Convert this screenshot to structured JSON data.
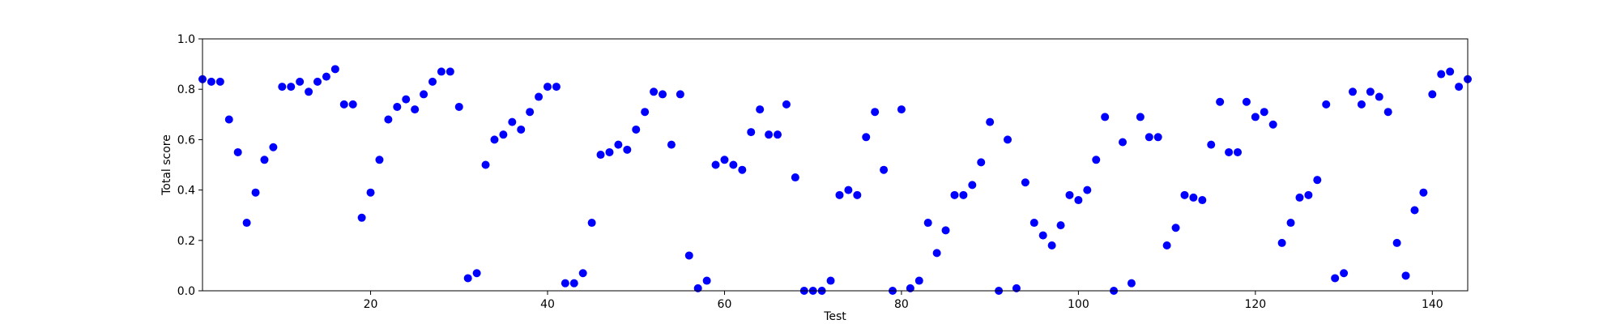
{
  "chart_data": {
    "type": "scatter",
    "title": "",
    "xlabel": "Test",
    "ylabel": "Total score",
    "xlim": [
      1,
      144
    ],
    "ylim": [
      0.0,
      1.0
    ],
    "grid": false,
    "marker_color": "#0000ff",
    "x_ticks": [
      20,
      40,
      60,
      80,
      100,
      120,
      140
    ],
    "y_ticks": [
      0.0,
      0.2,
      0.4,
      0.6,
      0.8,
      1.0
    ],
    "x_tick_labels": [
      "20",
      "40",
      "60",
      "80",
      "100",
      "120",
      "140"
    ],
    "y_tick_labels": [
      "0.0",
      "0.2",
      "0.4",
      "0.6",
      "0.8",
      "1.0"
    ],
    "series": [
      {
        "x": [
          1,
          2,
          3,
          4,
          5,
          6,
          7,
          8,
          9,
          10,
          11,
          12,
          13,
          14,
          15,
          16,
          17,
          18,
          19,
          20,
          21,
          22,
          23,
          24,
          25,
          26,
          27,
          28,
          29,
          30,
          31,
          32,
          33,
          34,
          35,
          36,
          37,
          38,
          39,
          40,
          41,
          42,
          43,
          44,
          45,
          46,
          47,
          48,
          49,
          50,
          51,
          52,
          53,
          54,
          55,
          56,
          57,
          58,
          59,
          60,
          61,
          62,
          63,
          64,
          65,
          66,
          67,
          68,
          69,
          70,
          71,
          72,
          73,
          74,
          75,
          76,
          77,
          78,
          79,
          80,
          81,
          82,
          83,
          84,
          85,
          86,
          87,
          88,
          89,
          90,
          91,
          92,
          93,
          94,
          95,
          96,
          97,
          98,
          99,
          100,
          101,
          102,
          103,
          104,
          105,
          106,
          107,
          108,
          109,
          110,
          111,
          112,
          113,
          114,
          115,
          116,
          117,
          118,
          119,
          120,
          121,
          122,
          123,
          124,
          125,
          126,
          127,
          128,
          129,
          130,
          131,
          132,
          133,
          134,
          135,
          136,
          137,
          138,
          139,
          140,
          141,
          142,
          143,
          144
        ],
        "y": [
          0.84,
          0.83,
          0.83,
          0.68,
          0.55,
          0.27,
          0.39,
          0.52,
          0.57,
          0.81,
          0.81,
          0.83,
          0.79,
          0.83,
          0.85,
          0.88,
          0.74,
          0.74,
          0.29,
          0.39,
          0.52,
          0.68,
          0.73,
          0.76,
          0.72,
          0.78,
          0.83,
          0.87,
          0.87,
          0.73,
          0.05,
          0.07,
          0.5,
          0.6,
          0.62,
          0.67,
          0.64,
          0.71,
          0.77,
          0.81,
          0.81,
          0.03,
          0.03,
          0.07,
          0.27,
          0.54,
          0.55,
          0.58,
          0.56,
          0.64,
          0.71,
          0.79,
          0.78,
          0.58,
          0.78,
          0.14,
          0.01,
          0.04,
          0.5,
          0.52,
          0.5,
          0.48,
          0.63,
          0.72,
          0.62,
          0.62,
          0.74,
          0.45,
          0.0,
          0.0,
          0.0,
          0.04,
          0.38,
          0.4,
          0.38,
          0.61,
          0.71,
          0.48,
          0.0,
          0.72,
          0.01,
          0.04,
          0.27,
          0.15,
          0.24,
          0.38,
          0.38,
          0.42,
          0.51,
          0.67,
          0.0,
          0.6,
          0.01,
          0.43,
          0.27,
          0.22,
          0.18,
          0.26,
          0.38,
          0.36,
          0.4,
          0.52,
          0.69,
          0.0,
          0.59,
          0.03,
          0.69,
          0.61,
          0.61,
          0.18,
          0.25,
          0.38,
          0.37,
          0.36,
          0.58,
          0.75,
          0.55,
          0.55,
          0.75,
          0.69,
          0.71,
          0.66,
          0.19,
          0.27,
          0.37,
          0.38,
          0.44,
          0.74,
          0.05,
          0.07,
          0.79,
          0.74,
          0.79,
          0.77,
          0.71,
          0.19,
          0.06,
          0.32,
          0.39,
          0.78,
          0.86,
          0.87,
          0.81,
          0.84
        ]
      }
    ]
  }
}
